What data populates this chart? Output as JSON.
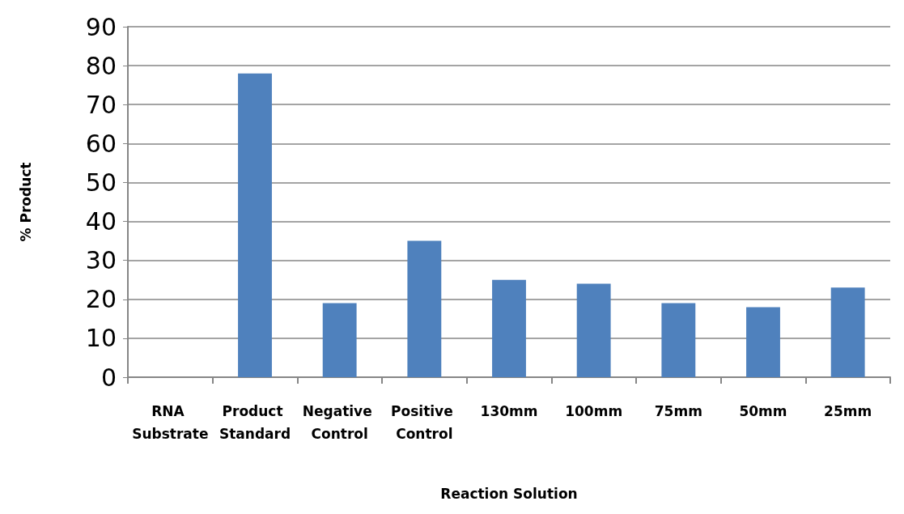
{
  "chart_data": {
    "type": "bar",
    "xlabel": "Reaction Solution",
    "ylabel": "% Product",
    "categories": [
      "RNA Substrate",
      "Product Standard",
      "Negative Control",
      "Positive Control",
      "130mm",
      "100mm",
      "75mm",
      "50mm",
      "25mm"
    ],
    "values": [
      0,
      78,
      19,
      35,
      25,
      24,
      19,
      18,
      23
    ],
    "color": "#4f81bd",
    "ylim": [
      0,
      90
    ],
    "yticks": [
      0,
      10,
      20,
      30,
      40,
      50,
      60,
      70,
      80,
      90
    ],
    "grid": "y"
  }
}
